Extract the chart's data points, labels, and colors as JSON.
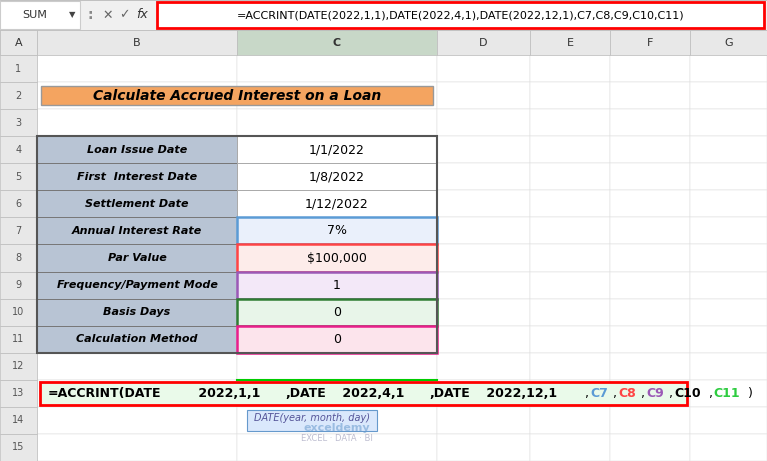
{
  "title": "Calculate Accrued Interest on a Loan",
  "title_bg": "#F4A460",
  "formula_bar_text": "=ACCRINT(DATE(2022,1,1),DATE(2022,4,1),DATE(2022,12,1),C7,C8,C9,C10,C11)",
  "row_labels": [
    "Loan Issue Date",
    "First  Interest Date",
    "Settlement Date",
    "Annual Interest Rate",
    "Par Value",
    "Frequency/Payment Mode",
    "Basis Days",
    "Calculation Method"
  ],
  "row_values": [
    "1/1/2022",
    "1/8/2022",
    "1/12/2022",
    "7%",
    "$100,000",
    "1",
    "0",
    "0"
  ],
  "row_numbers": [
    4,
    5,
    6,
    7,
    8,
    9,
    10,
    11
  ],
  "label_bg": "#B8C4D4",
  "value_bg_row7": "#EAF0FB",
  "value_bg_row8": "#FDECEA",
  "value_bg_row9": "#F3E8F8",
  "value_bg_row10": "#E8F5E9",
  "value_bg_row11": "#FCE4EC",
  "border_row7": "#5B9BD5",
  "border_row8": "#FF4444",
  "border_row9": "#9B59B6",
  "border_row10": "#2E7D32",
  "border_row11": "#E91E8C",
  "formula_row13": [
    [
      "=ACCRINT(DATE",
      "#000000",
      true
    ],
    [
      " 2022,1,1 ",
      "#000000",
      true
    ],
    [
      ",DATE",
      "#000000",
      true
    ],
    [
      " 2022,4,1 ",
      "#000000",
      true
    ],
    [
      ",DATE",
      "#000000",
      true
    ],
    [
      " 2022,12,1 ",
      "#000000",
      true
    ],
    [
      ",",
      "#000000",
      false
    ],
    [
      "C7",
      "#5B9BD5",
      true
    ],
    [
      ",",
      "#000000",
      false
    ],
    [
      "C8",
      "#FF4444",
      true
    ],
    [
      ",",
      "#000000",
      false
    ],
    [
      "C9",
      "#9B59B6",
      true
    ],
    [
      ",",
      "#000000",
      false
    ],
    [
      "C10",
      "#000000",
      true
    ],
    [
      ",",
      "#000000",
      false
    ],
    [
      "C11",
      "#2ECC40",
      true
    ],
    [
      ")",
      "#000000",
      false
    ]
  ],
  "tooltip_text": "DATE(year, month, day)",
  "exceldemy_text": "exceldemy",
  "exceldemy_subtext": "EXCEL · DATA · BI",
  "columns": [
    "A",
    "B",
    "C",
    "D",
    "E",
    "F",
    "G"
  ],
  "bg_color": "#FFFFFF"
}
